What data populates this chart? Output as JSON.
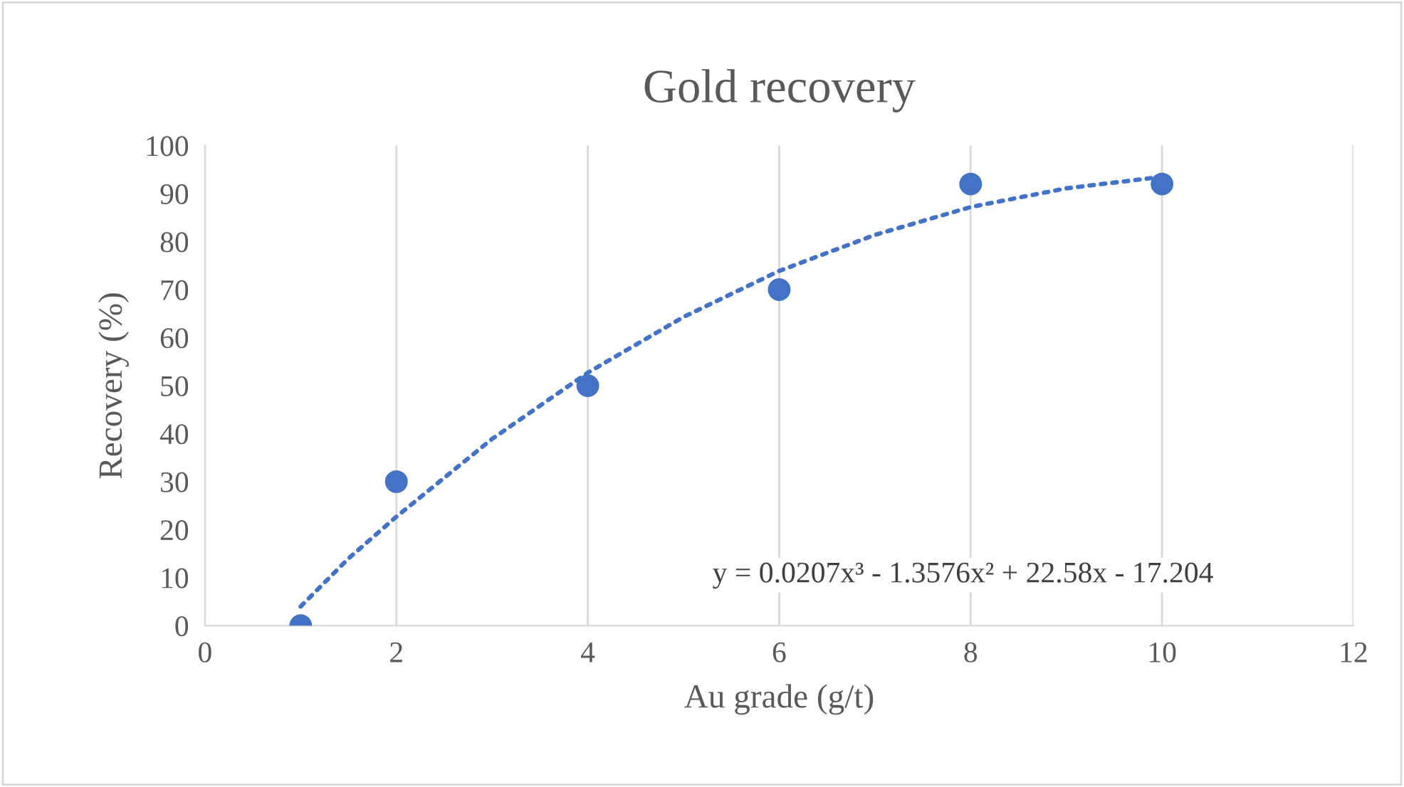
{
  "chart_data": {
    "type": "scatter",
    "title": "Gold recovery",
    "xlabel": "Au grade (g/t)",
    "ylabel": "Recovery (%)",
    "xlim": [
      0,
      12
    ],
    "xticks": [
      0,
      2,
      4,
      6,
      8,
      10,
      12
    ],
    "ylim": [
      0,
      100
    ],
    "yticks": [
      0,
      10,
      20,
      30,
      40,
      50,
      60,
      70,
      80,
      90,
      100
    ],
    "grid": "x",
    "marker": "circle",
    "series": [
      {
        "color": "#4472c4",
        "x": [
          1,
          2,
          4,
          6,
          8,
          10
        ],
        "values": [
          0,
          30,
          50,
          70,
          92,
          92
        ]
      },
      {
        "type": "line",
        "color": "#4472c4",
        "line_style": "dotted",
        "marker": "none",
        "x": [
          1,
          1.5,
          2,
          3,
          4,
          5,
          6,
          7,
          8,
          9,
          10
        ],
        "values": [
          4.0,
          14.0,
          22.7,
          38.9,
          52.7,
          64.3,
          73.9,
          81.4,
          87.2,
          91.1,
          93.5
        ]
      }
    ],
    "annotations": [
      "y = 0.0207x³ - 1.3576x² + 22.58x - 17.204"
    ]
  }
}
